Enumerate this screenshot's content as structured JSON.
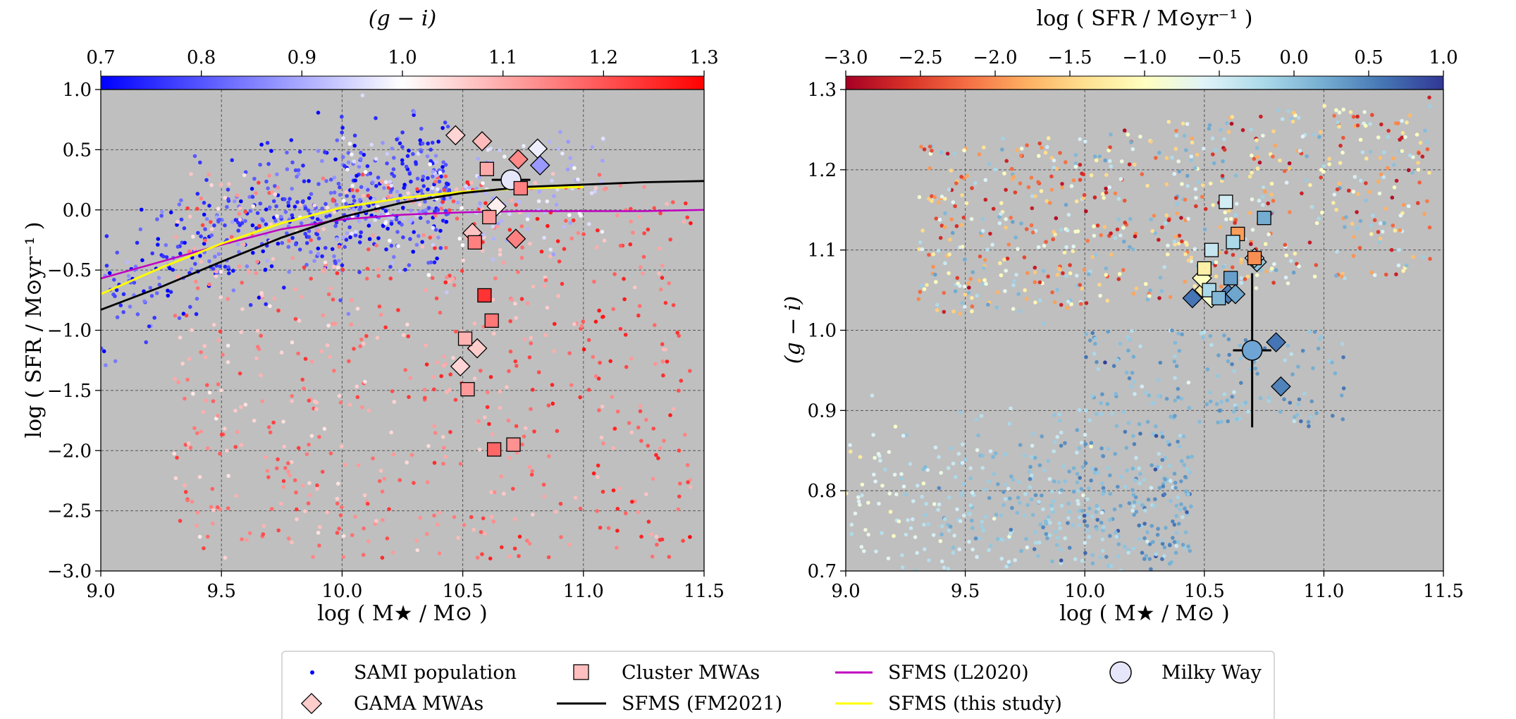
{
  "chart_data": [
    {
      "type": "scatter",
      "panel": "left",
      "xlabel": "log ( M★ / M⊙ )",
      "ylabel": "log ( SFR / M⊙yr⁻¹ )",
      "colorbar_label": "(g − i)",
      "xlim": [
        9.0,
        11.5
      ],
      "ylim": [
        -3.0,
        1.0
      ],
      "clim": [
        0.7,
        1.3
      ],
      "x_ticks": [
        "9.0",
        "9.5",
        "10.0",
        "10.5",
        "11.0",
        "11.5"
      ],
      "y_ticks": [
        "−3.0",
        "−2.5",
        "−2.0",
        "−1.5",
        "−1.0",
        "−0.5",
        "0.0",
        "0.5",
        "1.0"
      ],
      "colorbar_ticks": [
        "0.7",
        "0.8",
        "0.9",
        "1.0",
        "1.1",
        "1.2",
        "1.3"
      ],
      "gama_mwas": [
        {
          "x": 10.47,
          "y": 0.62,
          "c": 1.05
        },
        {
          "x": 10.58,
          "y": 0.57,
          "c": 1.08
        },
        {
          "x": 10.73,
          "y": 0.42,
          "c": 1.14
        },
        {
          "x": 10.81,
          "y": 0.51,
          "c": 0.98
        },
        {
          "x": 10.82,
          "y": 0.37,
          "c": 0.88
        },
        {
          "x": 10.64,
          "y": 0.03,
          "c": 1.02
        },
        {
          "x": 10.54,
          "y": -0.19,
          "c": 1.07
        },
        {
          "x": 10.72,
          "y": -0.24,
          "c": 1.15
        },
        {
          "x": 10.56,
          "y": -1.15,
          "c": 1.06
        },
        {
          "x": 10.49,
          "y": -1.3,
          "c": 1.05
        }
      ],
      "cluster_mwas": [
        {
          "x": 10.6,
          "y": 0.34,
          "c": 1.1
        },
        {
          "x": 10.74,
          "y": 0.18,
          "c": 1.15
        },
        {
          "x": 10.61,
          "y": -0.06,
          "c": 1.12
        },
        {
          "x": 10.55,
          "y": -0.27,
          "c": 1.15
        },
        {
          "x": 10.59,
          "y": -0.71,
          "c": 1.24
        },
        {
          "x": 10.62,
          "y": -0.92,
          "c": 1.16
        },
        {
          "x": 10.51,
          "y": -1.07,
          "c": 1.09
        },
        {
          "x": 10.52,
          "y": -1.49,
          "c": 1.12
        },
        {
          "x": 10.63,
          "y": -1.99,
          "c": 1.18
        },
        {
          "x": 10.71,
          "y": -1.95,
          "c": 1.13
        }
      ],
      "milky_way": {
        "x": 10.7,
        "y": 0.25,
        "xerr": 0.08,
        "yerr": 0.08
      },
      "sfms_fm2021": {
        "x": [
          9.0,
          9.25,
          9.5,
          9.75,
          10.0,
          10.25,
          10.5,
          10.75,
          11.0,
          11.25,
          11.5
        ],
        "y": [
          -0.83,
          -0.64,
          -0.43,
          -0.23,
          -0.06,
          0.06,
          0.14,
          0.19,
          0.21,
          0.23,
          0.24
        ]
      },
      "sfms_l2020": {
        "x": [
          9.0,
          9.25,
          9.5,
          9.75,
          10.0,
          10.25,
          10.5,
          10.75,
          11.0,
          11.25,
          11.5
        ],
        "y": [
          -0.57,
          -0.43,
          -0.29,
          -0.16,
          -0.08,
          -0.04,
          -0.02,
          -0.01,
          -0.01,
          -0.01,
          0.0
        ]
      },
      "sfms_this_study": {
        "x": [
          9.0,
          9.25,
          9.5,
          9.75,
          10.0,
          10.25,
          10.5,
          10.75,
          11.0
        ],
        "y": [
          -0.7,
          -0.48,
          -0.28,
          -0.11,
          0.02,
          0.1,
          0.15,
          0.18,
          0.19
        ]
      }
    },
    {
      "type": "scatter",
      "panel": "right",
      "xlabel": "log ( M★ / M⊙ )",
      "ylabel": "(g − i)",
      "colorbar_label": "log ( SFR / M⊙yr⁻¹ )",
      "xlim": [
        9.0,
        11.5
      ],
      "ylim": [
        0.7,
        1.3
      ],
      "clim": [
        -3.0,
        1.0
      ],
      "x_ticks": [
        "9.0",
        "9.5",
        "10.0",
        "10.5",
        "11.0",
        "11.5"
      ],
      "y_ticks": [
        "0.7",
        "0.8",
        "0.9",
        "1.0",
        "1.1",
        "1.2",
        "1.3"
      ],
      "colorbar_ticks": [
        "−3.0",
        "−2.5",
        "−2.0",
        "−1.5",
        "−1.0",
        "−0.5",
        "0.0",
        "0.5",
        "1.0"
      ],
      "gama_mwas": [
        {
          "x": 10.45,
          "y": 1.04,
          "c": 0.6
        },
        {
          "x": 10.6,
          "y": 1.045,
          "c": 0.55
        },
        {
          "x": 10.63,
          "y": 1.045,
          "c": 0.25
        },
        {
          "x": 10.8,
          "y": 0.985,
          "c": 0.6
        },
        {
          "x": 10.82,
          "y": 0.93,
          "c": 0.5
        },
        {
          "x": 10.5,
          "y": 1.05,
          "c": -1.2
        },
        {
          "x": 10.53,
          "y": 1.04,
          "c": -0.9
        },
        {
          "x": 10.49,
          "y": 1.065,
          "c": -1.0
        },
        {
          "x": 10.72,
          "y": 1.085,
          "c": 0.0
        },
        {
          "x": 10.71,
          "y": 1.09,
          "c": -0.5
        }
      ],
      "cluster_mwas": [
        {
          "x": 10.59,
          "y": 1.16,
          "c": -0.5
        },
        {
          "x": 10.75,
          "y": 1.14,
          "c": 0.2
        },
        {
          "x": 10.64,
          "y": 1.12,
          "c": -1.9
        },
        {
          "x": 10.62,
          "y": 1.11,
          "c": -0.2
        },
        {
          "x": 10.53,
          "y": 1.1,
          "c": -0.4
        },
        {
          "x": 10.71,
          "y": 1.09,
          "c": -2.0
        },
        {
          "x": 10.5,
          "y": 1.077,
          "c": -1.2
        },
        {
          "x": 10.61,
          "y": 1.065,
          "c": 0.3
        },
        {
          "x": 10.52,
          "y": 1.05,
          "c": -0.2
        },
        {
          "x": 10.56,
          "y": 1.04,
          "c": 0.1
        }
      ],
      "milky_way": {
        "x": 10.7,
        "y": 0.975,
        "xerr": 0.08,
        "yerr": 0.08
      }
    }
  ],
  "legend": {
    "sami": "SAMI population",
    "gama": "GAMA MWAs",
    "cluster": "Cluster MWAs",
    "fm2021": "SFMS (FM2021)",
    "l2020": "SFMS (L2020)",
    "this_study": "SFMS (this study)",
    "milky_way": "Milky Way"
  },
  "colors": {
    "panel_bg": "#bfbfbf",
    "sfms_fm2021": "#000000",
    "sfms_l2020": "#c000c0",
    "sfms_this_study": "#ffff00",
    "milky_way": "#e6e6fa"
  }
}
